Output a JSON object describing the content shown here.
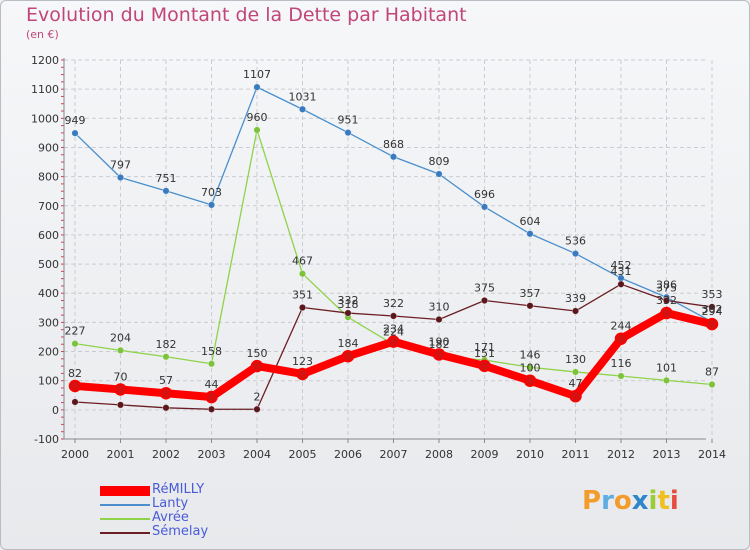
{
  "header": {
    "title": "Evolution du Montant de la Dette par Habitant",
    "subtitle": "(en €)"
  },
  "logo": {
    "text": "Proxiti",
    "letters": [
      "P",
      "r",
      "o",
      "x",
      "i",
      "t",
      "i"
    ],
    "colors": [
      "#f39c2b",
      "#5dade2",
      "#f39c2b",
      "#2f86c9",
      "#9acd32",
      "#f0c020",
      "#e74c3c"
    ]
  },
  "chart_data": {
    "type": "line",
    "title": "Evolution du Montant de la Dette par Habitant",
    "ylabel": "(en €)",
    "xlabel": "",
    "x": [
      "2000",
      "2001",
      "2002",
      "2003",
      "2004",
      "2005",
      "2006",
      "2007",
      "2008",
      "2009",
      "2010",
      "2011",
      "2012",
      "2013",
      "2014"
    ],
    "ylim": [
      -100,
      1200
    ],
    "yticks": [
      "-100",
      "0",
      "100",
      "200",
      "300",
      "400",
      "500",
      "600",
      "700",
      "800",
      "900",
      "1000",
      "1100",
      "1200"
    ],
    "grid": true,
    "legend_position": "bottom-left",
    "series": [
      {
        "name": "Lanty",
        "color": "#4a8fcc",
        "marker": "#3a7bbf",
        "values": [
          949,
          797,
          751,
          703,
          1107,
          1031,
          951,
          868,
          809,
          696,
          604,
          536,
          452,
          386,
          302
        ],
        "labels": [
          "949",
          "797",
          "751",
          "703",
          "1107",
          "1031",
          "951",
          "868",
          "809",
          "696",
          "604",
          "536",
          "452",
          "386",
          "302"
        ]
      },
      {
        "name": "Avrée",
        "color": "#8ed34a",
        "marker": "#7cc23a",
        "values": [
          227,
          204,
          182,
          158,
          960,
          467,
          318,
          224,
          182,
          171,
          146,
          130,
          116,
          101,
          87
        ],
        "labels": [
          "227",
          "204",
          "182",
          "158",
          "960",
          "467",
          "318",
          "224",
          "182",
          "171",
          "146",
          "130",
          "116",
          "101",
          "87"
        ]
      },
      {
        "name": "Sémelay",
        "color": "#6b1f25",
        "marker": "#5a171c",
        "values": [
          27,
          17,
          7,
          2,
          2,
          351,
          332,
          322,
          310,
          375,
          357,
          339,
          431,
          375,
          353
        ],
        "labels": [
          "",
          "",
          "",
          "",
          "2",
          "351",
          "332",
          "322",
          "310",
          "375",
          "357",
          "339",
          "431",
          "375",
          "353"
        ]
      },
      {
        "name": "RéMILLY",
        "color": "#ff0000",
        "marker": "#d81010",
        "values": [
          82,
          70,
          57,
          44,
          150,
          123,
          184,
          234,
          190,
          151,
          100,
          47,
          244,
          332,
          294
        ],
        "labels": [
          "82",
          "70",
          "57",
          "44",
          "150",
          "123",
          "184",
          "234",
          "190",
          "151",
          "100",
          "47",
          "244",
          "332",
          "294"
        ]
      }
    ],
    "legend": [
      {
        "name": "RéMILLY",
        "color": "#ff0000",
        "thickness": 10
      },
      {
        "name": "Lanty",
        "color": "#4a8fcc",
        "thickness": 2
      },
      {
        "name": "Avrée",
        "color": "#8ed34a",
        "thickness": 2
      },
      {
        "name": "Sémelay",
        "color": "#6b1f25",
        "thickness": 2
      }
    ]
  }
}
